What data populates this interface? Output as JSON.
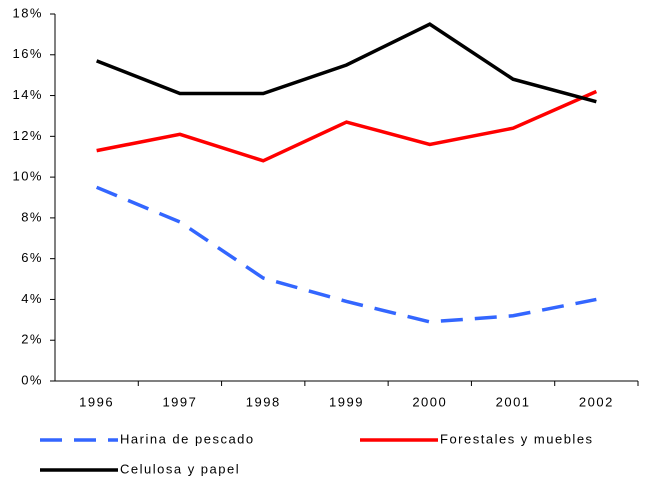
{
  "chart_data": {
    "type": "line",
    "categories": [
      "1996",
      "1997",
      "1998",
      "1999",
      "2000",
      "2001",
      "2002"
    ],
    "series": [
      {
        "name": "Harina de pescado",
        "color": "#3366ff",
        "style": "dashed",
        "values": [
          9.5,
          7.8,
          5.05,
          3.9,
          2.9,
          3.2,
          4.0
        ]
      },
      {
        "name": "Forestales y muebles",
        "color": "#ff0000",
        "style": "solid",
        "values": [
          11.3,
          12.1,
          10.8,
          12.7,
          11.6,
          12.4,
          14.2
        ]
      },
      {
        "name": "Celulosa y papel",
        "color": "#000000",
        "style": "solid",
        "values": [
          15.7,
          14.1,
          14.1,
          15.5,
          17.5,
          14.8,
          13.7
        ]
      }
    ],
    "ylim": [
      0,
      18
    ],
    "yticks": [
      {
        "value": 0,
        "label": "0%"
      },
      {
        "value": 2,
        "label": "2%"
      },
      {
        "value": 4,
        "label": "4%"
      },
      {
        "value": 6,
        "label": "6%"
      },
      {
        "value": 8,
        "label": "8%"
      },
      {
        "value": 10,
        "label": "10%"
      },
      {
        "value": 12,
        "label": "12%"
      },
      {
        "value": 14,
        "label": "14%"
      },
      {
        "value": 16,
        "label": "16%"
      },
      {
        "value": 18,
        "label": "18%"
      }
    ],
    "grid": false
  }
}
